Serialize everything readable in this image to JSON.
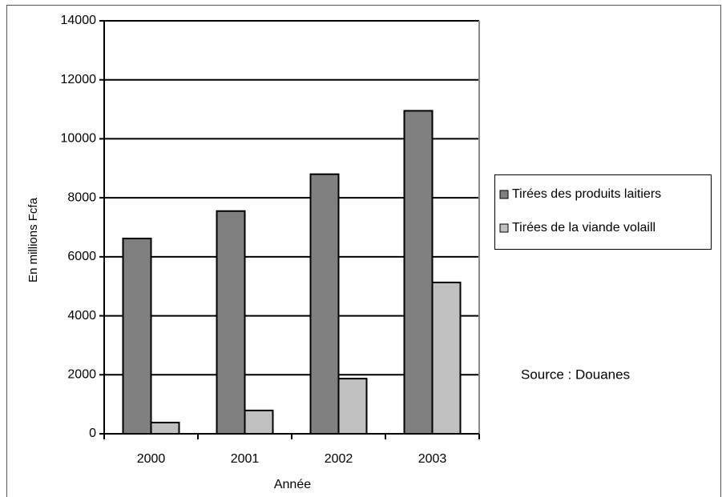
{
  "chart_data": {
    "type": "bar",
    "categories": [
      "2000",
      "2001",
      "2002",
      "2003"
    ],
    "series": [
      {
        "name": "Tirées des produits laitiers",
        "color": "#808080",
        "values": [
          6620,
          7550,
          8800,
          10950
        ]
      },
      {
        "name": "Tirées de la viande volaill",
        "color": "#c0c0c0",
        "values": [
          380,
          790,
          1870,
          5130
        ]
      }
    ],
    "ylim": [
      0,
      14000
    ],
    "yticks": [
      0,
      2000,
      4000,
      6000,
      8000,
      10000,
      12000,
      14000
    ],
    "y_label": "En millions Fcfa",
    "x_label": "Année",
    "annotation": "Source : Douanes",
    "grid": true
  }
}
